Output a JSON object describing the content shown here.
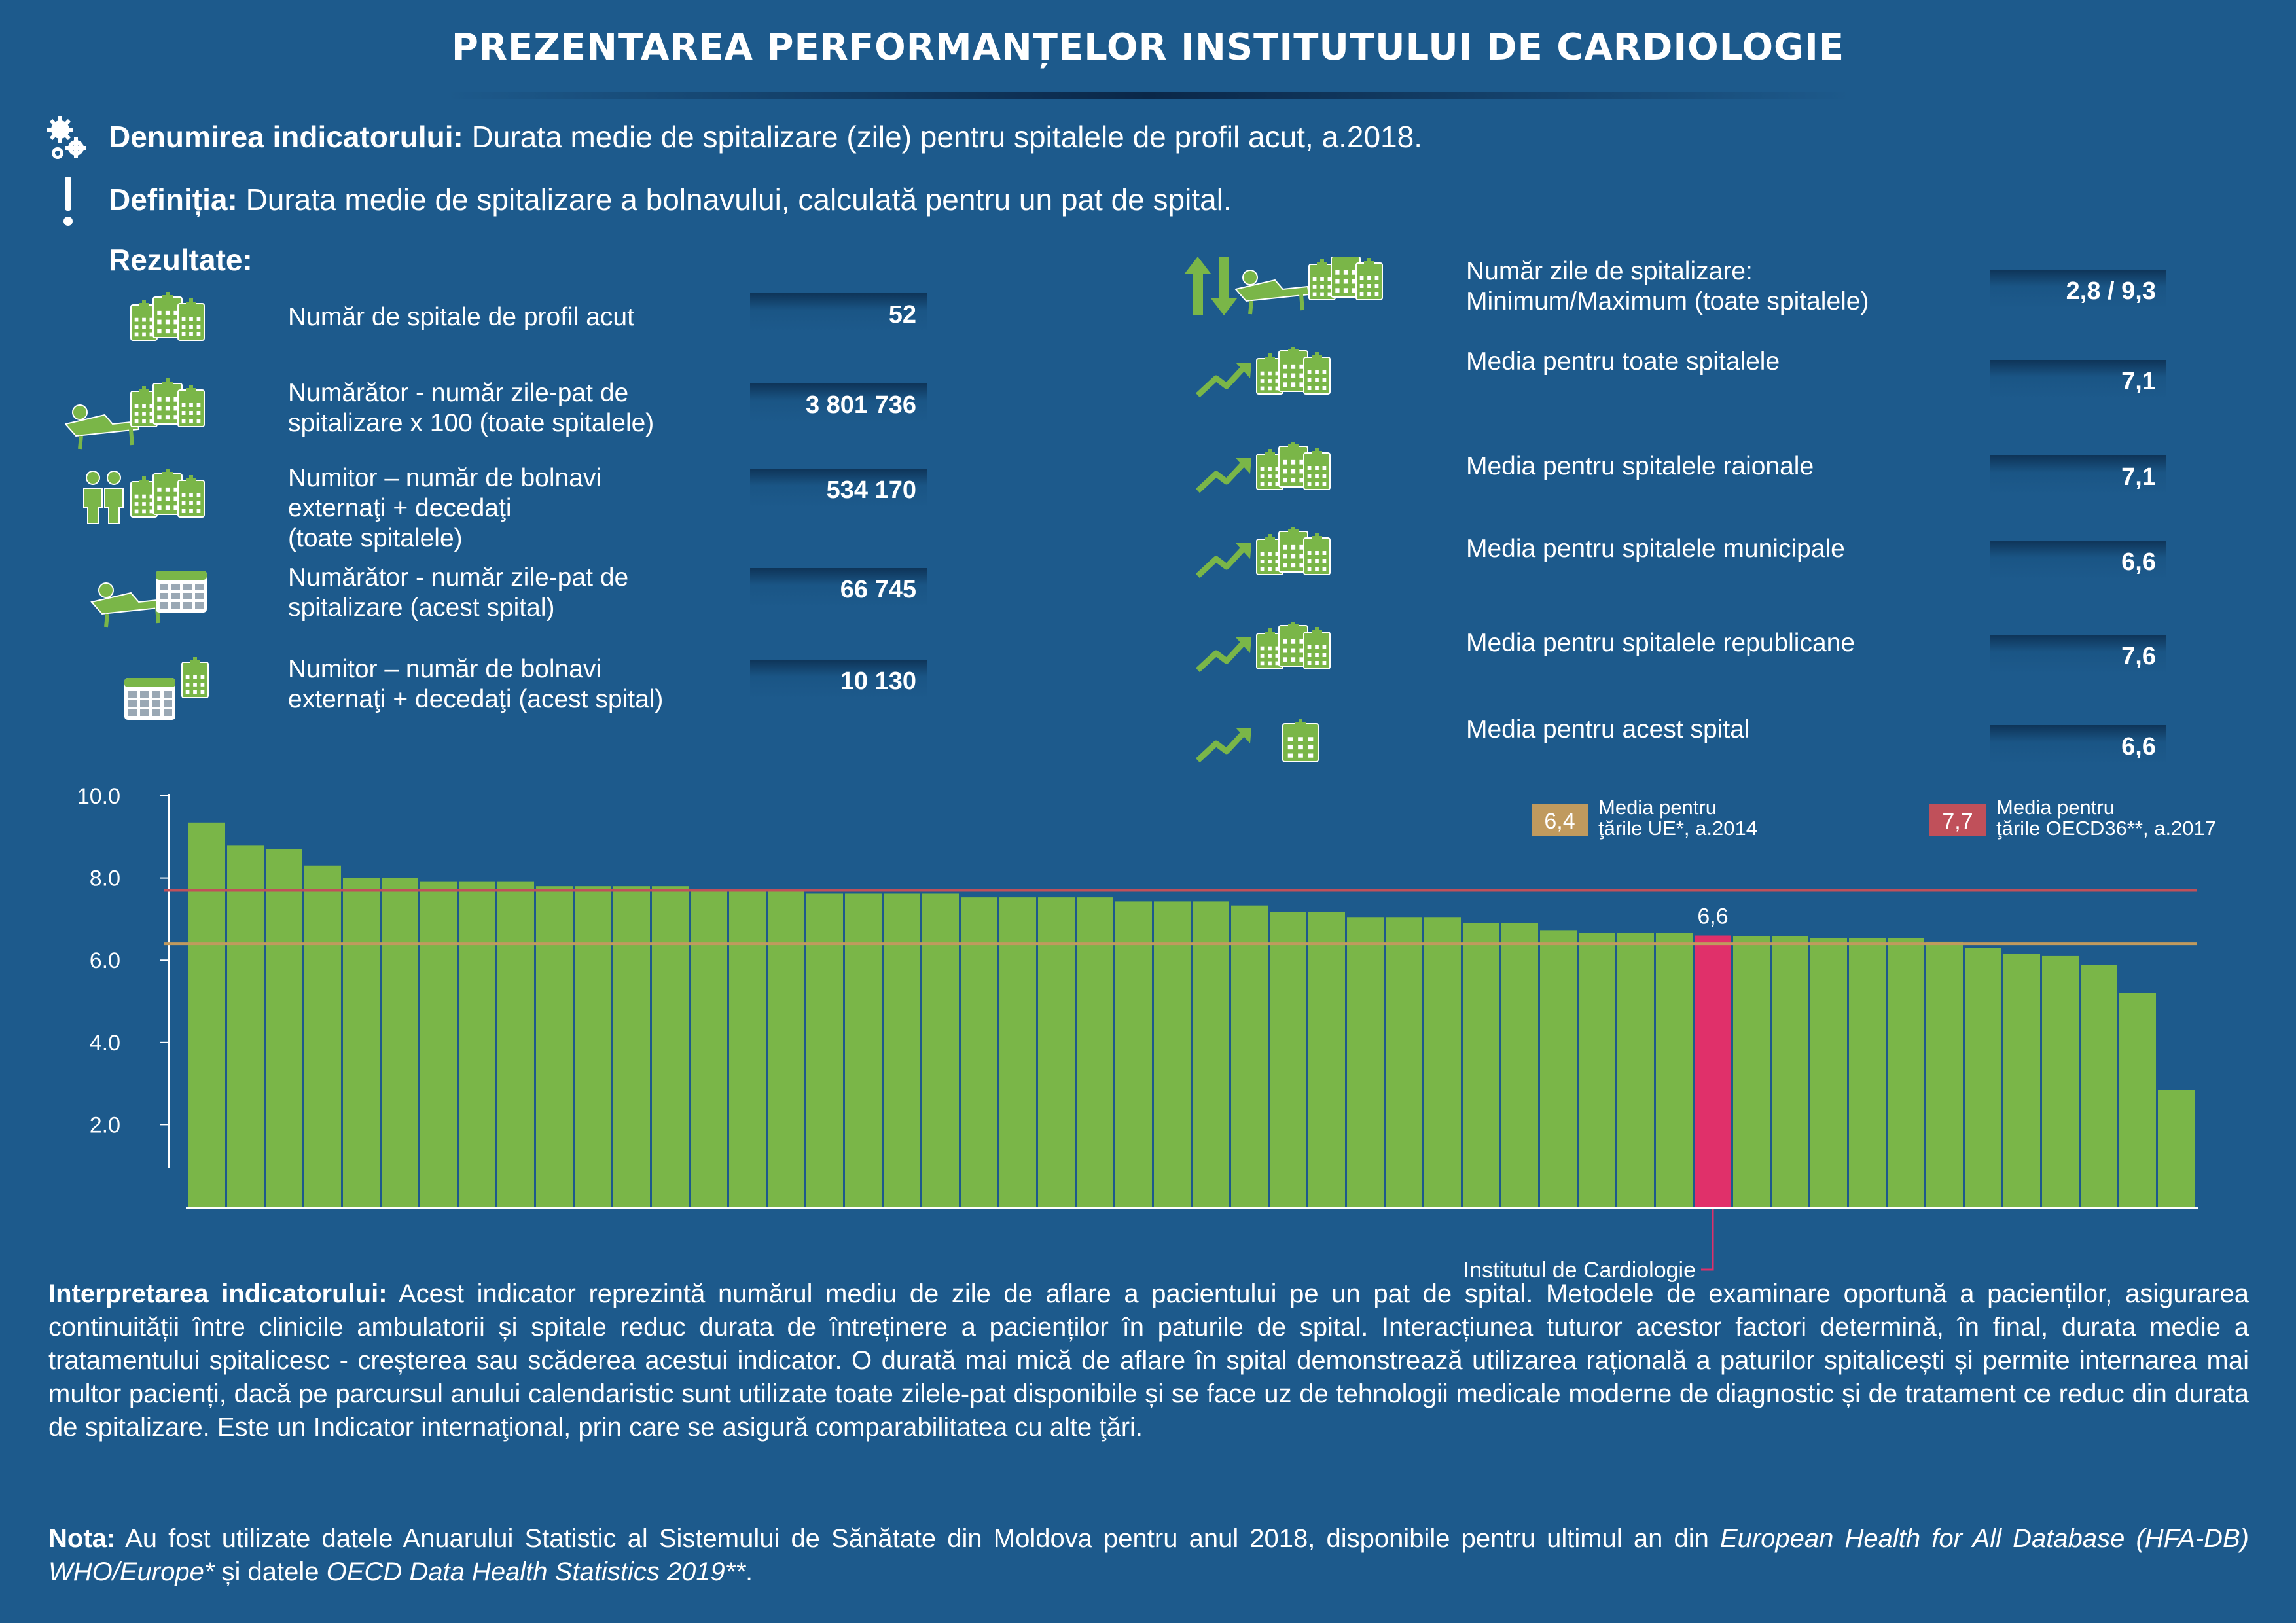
{
  "title": "PREZENTAREA PERFORMANȚELOR INSTITUTULUI DE CARDIOLOGIE",
  "indicator": {
    "name_label": "Denumirea indicatorului:",
    "name_value": "Durata medie de spitalizare (zile) pentru spitalele de profil acut, a.2018.",
    "definition_label": "Definiția:",
    "definition_value": "Durata medie de spitalizare a bolnavului, calculată pentru un pat de spital."
  },
  "results_label": "Rezultate:",
  "results_left": [
    {
      "lines": [
        "Număr de spitale de profil acut"
      ],
      "value": "52",
      "icon": "hospitals-icon"
    },
    {
      "lines": [
        "Numărător - număr zile-pat de",
        "spitalizare x 100 (toate spitalele)"
      ],
      "value": "3 801 736",
      "icon": "patient-bed-hospitals-icon"
    },
    {
      "lines": [
        "Numitor –  număr de bolnavi",
        "externaţi + decedaţi",
        "(toate spitalele)"
      ],
      "value": "534 170",
      "icon": "people-hospitals-icon"
    },
    {
      "lines": [
        "Numărător - număr zile-pat de",
        "spitalizare (acest spital)"
      ],
      "value": "66 745",
      "icon": "patient-bed-calendar-icon"
    },
    {
      "lines": [
        "Numitor – număr de bolnavi",
        "externaţi + decedaţi (acest spital)"
      ],
      "value": "10 130",
      "icon": "calendar-hospital-icon"
    }
  ],
  "results_right": [
    {
      "lines": [
        "Număr zile de spitalizare:",
        "Minimum/Maximum (toate spitalele)"
      ],
      "value": "2,8 / 9,3",
      "icon": "min-max-arrows-icon"
    },
    {
      "lines": [
        "Media pentru toate spitalele"
      ],
      "value": "7,1",
      "icon": "trend-hospitals-icon"
    },
    {
      "lines": [
        "Media pentru spitalele raionale"
      ],
      "value": "7,1",
      "icon": "trend-hospitals-icon"
    },
    {
      "lines": [
        "Media pentru spitalele municipale"
      ],
      "value": "6,6",
      "icon": "trend-hospitals-icon"
    },
    {
      "lines": [
        "Media pentru spitalele republicane"
      ],
      "value": "7,6",
      "icon": "trend-hospitals-icon"
    },
    {
      "lines": [
        "Media pentru acest spital"
      ],
      "value": "6,6",
      "icon": "trend-hospital-icon"
    }
  ],
  "chart_data": {
    "type": "bar",
    "title": "",
    "xlabel": "",
    "ylabel": "",
    "ylim": [
      0,
      10
    ],
    "yticks": [
      "10.0",
      "8.0",
      "6.0",
      "4.0",
      "2.0"
    ],
    "ytick_values": [
      10,
      8,
      6,
      4,
      2
    ],
    "grid": false,
    "values": [
      9.35,
      8.8,
      8.7,
      8.3,
      8.0,
      8.0,
      7.92,
      7.92,
      7.92,
      7.8,
      7.8,
      7.8,
      7.8,
      7.68,
      7.68,
      7.68,
      7.62,
      7.62,
      7.62,
      7.62,
      7.53,
      7.53,
      7.53,
      7.53,
      7.43,
      7.43,
      7.43,
      7.33,
      7.18,
      7.18,
      7.05,
      7.05,
      7.05,
      6.9,
      6.9,
      6.73,
      6.66,
      6.66,
      6.66,
      6.6,
      6.58,
      6.58,
      6.53,
      6.53,
      6.53,
      6.45,
      6.3,
      6.15,
      6.1,
      5.88,
      5.2,
      2.85
    ],
    "highlight_index": 39,
    "highlight_label": "6,6",
    "highlight_name": "Institutul de Cardiologie",
    "bar_color": "#7ab648",
    "highlight_color": "#e0306a",
    "reference_lines": [
      {
        "value": 6.4,
        "value_label": "6,4",
        "text_lines": [
          "Media pentru",
          "ţările UE*, a.2014"
        ],
        "color": "#c09a5e"
      },
      {
        "value": 7.7,
        "value_label": "7,7",
        "text_lines": [
          "Media pentru",
          "ţările OECD36**, a.2017"
        ],
        "color": "#c0505a"
      }
    ]
  },
  "interpretation": {
    "label": "Interpretarea indicatorului:",
    "text": " Acest indicator reprezintă numărul mediu de zile de aflare a pacientului pe un pat de spital. Metodele de examinare oportună a pacienților, asigurarea continuității între clinicile ambulatorii și spitale reduc durata de întreținere a pacienților în paturile de spital. Interacțiunea tuturor acestor factori determină, în final, durata medie a tratamentului spitalicesc - creșterea sau scăderea acestui indicator. O durată mai mică de aflare în spital demonstrează utilizarea rațională a paturilor spitalicești și permite internarea mai multor pacienți, dacă pe parcursul anului calendaristic sunt utilizate toate zilele-pat disponibile și se face uz de tehnologii medicale moderne de diagnostic și de tratament ce reduc din durata de spitalizare. Este un Indicator internaţional, prin care se asigură comparabilitatea cu alte ţări."
  },
  "note": {
    "label": "Nota:",
    "text_1": " Au fost utilizate datele Anuarului Statistic al Sistemului de Sănătate din Moldova pentru anul 2018, disponibile pentru ultimul an din ",
    "italic_1": "European Health for All Database (HFA-DB) WHO/Europe*",
    "text_2": " și datele ",
    "italic_2": "OECD Data Health Statistics 2019**",
    "text_3": "."
  }
}
